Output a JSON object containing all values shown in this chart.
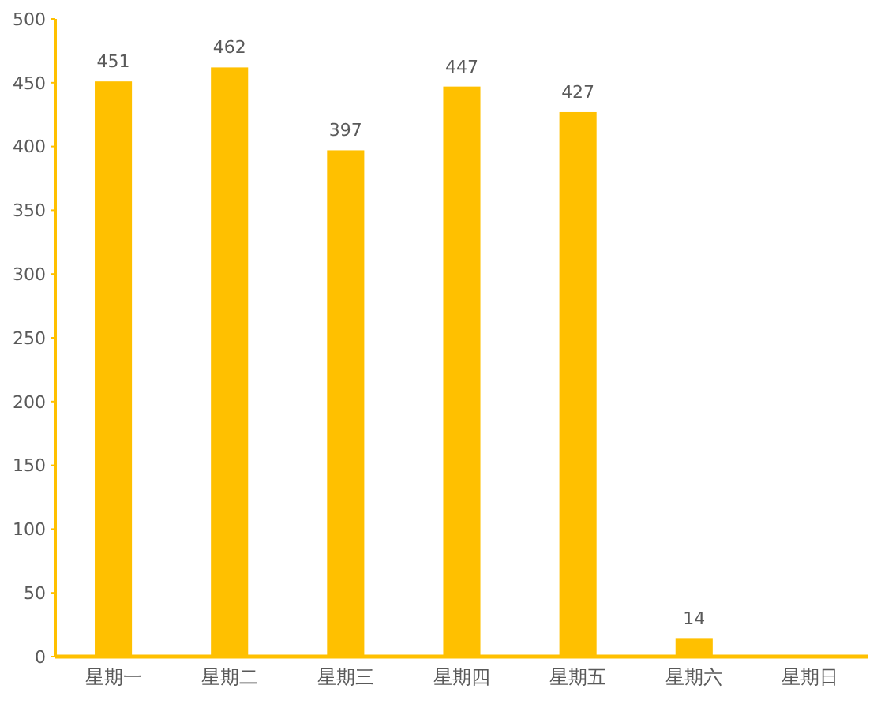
{
  "chart_data": {
    "type": "bar",
    "categories": [
      "星期一",
      "星期二",
      "星期三",
      "星期四",
      "星期五",
      "星期六",
      "星期日"
    ],
    "values": [
      451,
      462,
      397,
      447,
      427,
      14,
      0
    ],
    "value_labels": [
      "451",
      "462",
      "397",
      "447",
      "427",
      "14",
      null
    ],
    "color": "#ffc000",
    "ylim": [
      0,
      500
    ],
    "yticks": [
      0,
      50,
      100,
      150,
      200,
      250,
      300,
      350,
      400,
      450,
      500
    ],
    "grid": false
  }
}
